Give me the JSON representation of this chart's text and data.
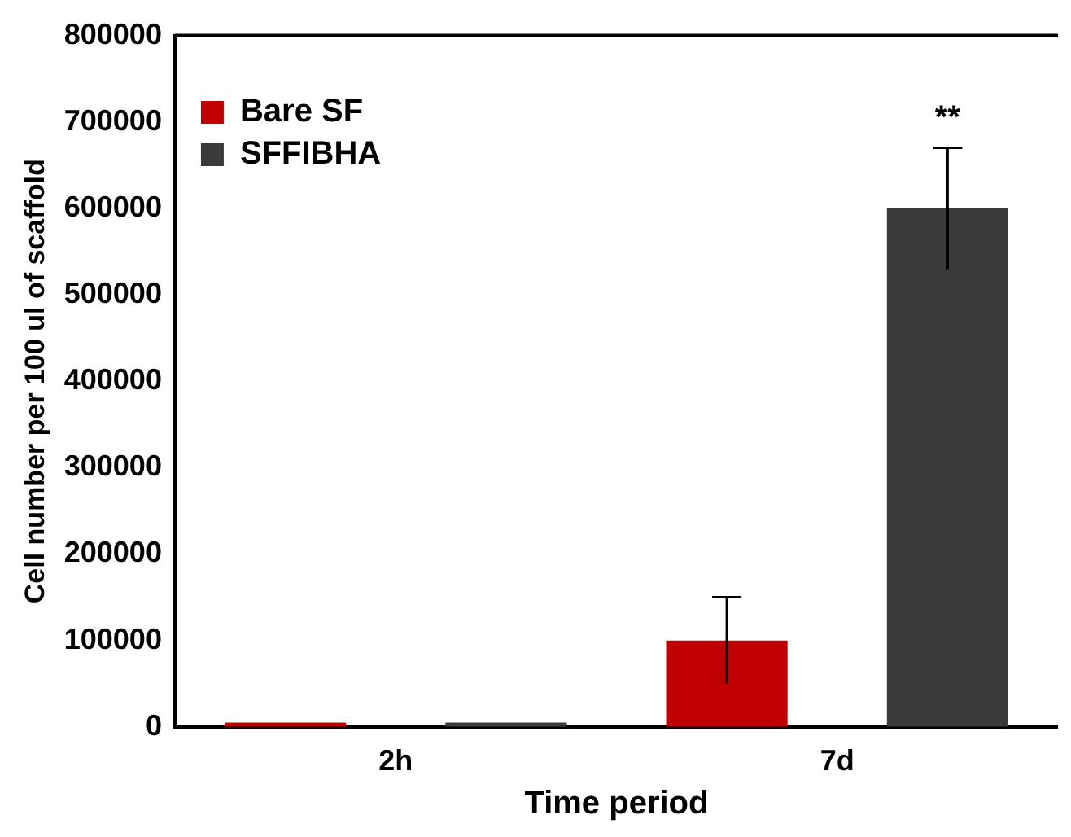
{
  "chart_data": {
    "type": "bar",
    "xlabel": "Time period",
    "ylabel": "Cell number per 100 ul of scaffold",
    "categories": [
      "2h",
      "7d"
    ],
    "series": [
      {
        "name": "Bare SF",
        "color": "#c00000",
        "values": [
          5000,
          100000
        ],
        "errors": [
          null,
          50000
        ]
      },
      {
        "name": "SFFIBHA",
        "color": "#3a3a3a",
        "values": [
          5000,
          600000
        ],
        "errors": [
          null,
          70000
        ]
      }
    ],
    "ylim": [
      0,
      800000
    ],
    "yticks": [
      0,
      100000,
      200000,
      300000,
      400000,
      500000,
      600000,
      700000,
      800000
    ],
    "grid": false,
    "legend": "top left",
    "annotations": [
      "**"
    ]
  }
}
